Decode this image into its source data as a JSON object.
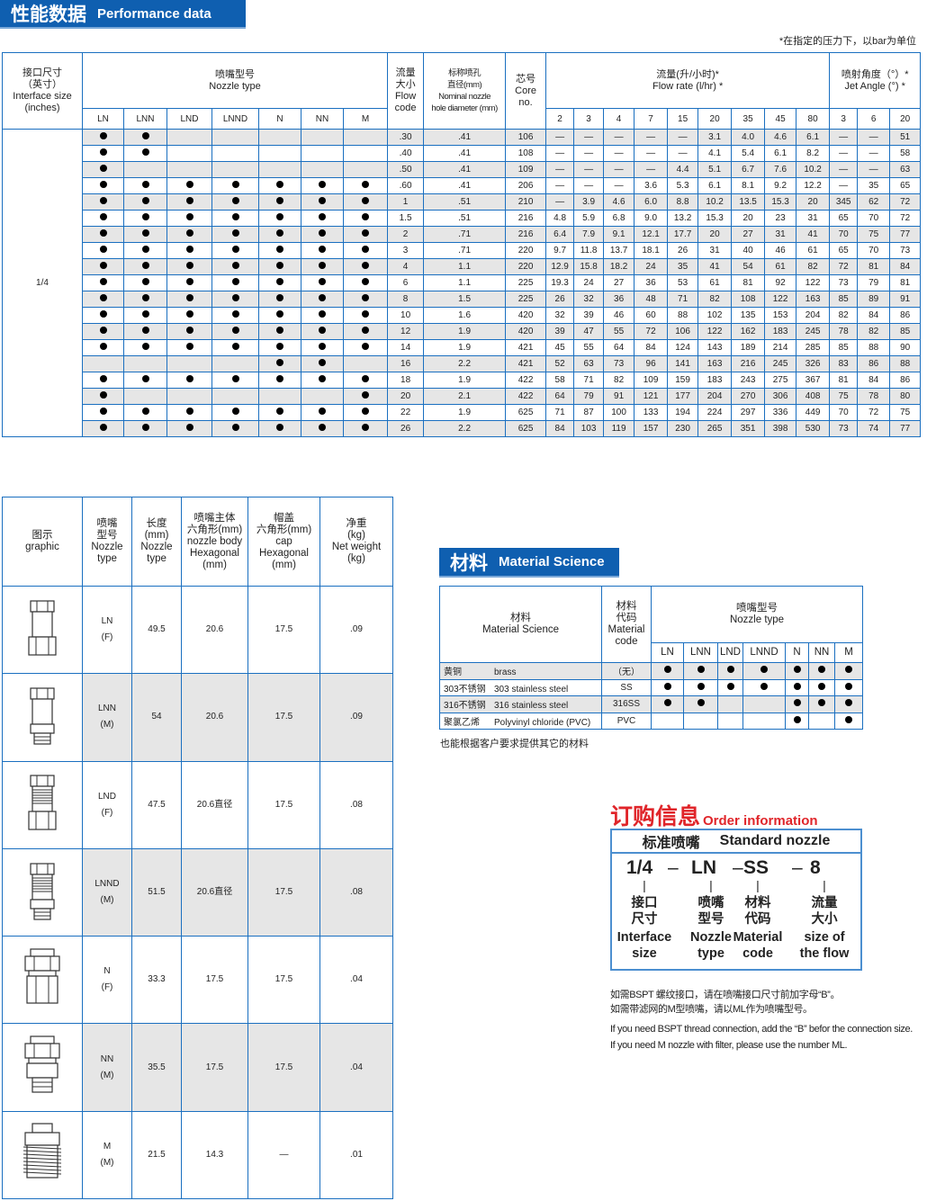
{
  "perf": {
    "banner_cn": "性能数据",
    "banner_en": "Performance data",
    "note": "*在指定的压力下，以bar为单位",
    "headers": {
      "interface": [
        "接口尺寸",
        "（英寸）",
        "Interface size",
        "(inches)"
      ],
      "nozzle_type_cn": "喷嘴型号",
      "nozzle_type_en": "Nozzle type",
      "flow_code": [
        "流量",
        "大小",
        "Flow",
        "code"
      ],
      "diameter": [
        "标称喷孔",
        "直径(mm)",
        "Nominal nozzle",
        "hole diameter (mm)"
      ],
      "core": [
        "芯号",
        "Core",
        "no."
      ],
      "flow_rate_cn": "流量(升/小时)*",
      "flow_rate_en": "Flow rate (l/hr) *",
      "jet_cn": "喷射角度（°）*",
      "jet_en": "Jet Angle (°) *"
    },
    "types": [
      "LN",
      "LNN",
      "LND",
      "LNND",
      "N",
      "NN",
      "M"
    ],
    "pressures": [
      "2",
      "3",
      "4",
      "7",
      "15",
      "20",
      "35",
      "45",
      "80"
    ],
    "angle_pressures": [
      "3",
      "6",
      "20"
    ],
    "interface_value": "1/4",
    "rows": [
      {
        "t": [
          1,
          1,
          0,
          0,
          0,
          0,
          0
        ],
        "code": ".30",
        "dia": ".41",
        "core": "106",
        "flow": [
          "—",
          "—",
          "—",
          "—",
          "—",
          "3.1",
          "4.0",
          "4.6",
          "6.1"
        ],
        "angle": [
          "—",
          "—",
          "51"
        ]
      },
      {
        "t": [
          1,
          1,
          0,
          0,
          0,
          0,
          0
        ],
        "code": ".40",
        "dia": ".41",
        "core": "108",
        "flow": [
          "—",
          "—",
          "—",
          "—",
          "—",
          "4.1",
          "5.4",
          "6.1",
          "8.2"
        ],
        "angle": [
          "—",
          "—",
          "58"
        ]
      },
      {
        "t": [
          1,
          0,
          0,
          0,
          0,
          0,
          0
        ],
        "code": ".50",
        "dia": ".41",
        "core": "109",
        "flow": [
          "—",
          "—",
          "—",
          "—",
          "4.4",
          "5.1",
          "6.7",
          "7.6",
          "10.2"
        ],
        "angle": [
          "—",
          "—",
          "63"
        ]
      },
      {
        "t": [
          1,
          1,
          1,
          1,
          1,
          1,
          1
        ],
        "code": ".60",
        "dia": ".41",
        "core": "206",
        "flow": [
          "—",
          "—",
          "—",
          "3.6",
          "5.3",
          "6.1",
          "8.1",
          "9.2",
          "12.2"
        ],
        "angle": [
          "—",
          "35",
          "65"
        ]
      },
      {
        "t": [
          1,
          1,
          1,
          1,
          1,
          1,
          1
        ],
        "code": "1",
        "dia": ".51",
        "core": "210",
        "flow": [
          "—",
          "3.9",
          "4.6",
          "6.0",
          "8.8",
          "10.2",
          "13.5",
          "15.3",
          "20"
        ],
        "angle": [
          "345",
          "62",
          "72"
        ]
      },
      {
        "t": [
          1,
          1,
          1,
          1,
          1,
          1,
          1
        ],
        "code": "1.5",
        "dia": ".51",
        "core": "216",
        "flow": [
          "4.8",
          "5.9",
          "6.8",
          "9.0",
          "13.2",
          "15.3",
          "20",
          "23",
          "31"
        ],
        "angle": [
          "65",
          "70",
          "72"
        ]
      },
      {
        "t": [
          1,
          1,
          1,
          1,
          1,
          1,
          1
        ],
        "code": "2",
        "dia": ".71",
        "core": "216",
        "flow": [
          "6.4",
          "7.9",
          "9.1",
          "12.1",
          "17.7",
          "20",
          "27",
          "31",
          "41"
        ],
        "angle": [
          "70",
          "75",
          "77"
        ]
      },
      {
        "t": [
          1,
          1,
          1,
          1,
          1,
          1,
          1
        ],
        "code": "3",
        "dia": ".71",
        "core": "220",
        "flow": [
          "9.7",
          "11.8",
          "13.7",
          "18.1",
          "26",
          "31",
          "40",
          "46",
          "61"
        ],
        "angle": [
          "65",
          "70",
          "73"
        ]
      },
      {
        "t": [
          1,
          1,
          1,
          1,
          1,
          1,
          1
        ],
        "code": "4",
        "dia": "1.1",
        "core": "220",
        "flow": [
          "12.9",
          "15.8",
          "18.2",
          "24",
          "35",
          "41",
          "54",
          "61",
          "82"
        ],
        "angle": [
          "72",
          "81",
          "84"
        ]
      },
      {
        "t": [
          1,
          1,
          1,
          1,
          1,
          1,
          1
        ],
        "code": "6",
        "dia": "1.1",
        "core": "225",
        "flow": [
          "19.3",
          "24",
          "27",
          "36",
          "53",
          "61",
          "81",
          "92",
          "122"
        ],
        "angle": [
          "73",
          "79",
          "81"
        ]
      },
      {
        "t": [
          1,
          1,
          1,
          1,
          1,
          1,
          1
        ],
        "code": "8",
        "dia": "1.5",
        "core": "225",
        "flow": [
          "26",
          "32",
          "36",
          "48",
          "71",
          "82",
          "108",
          "122",
          "163"
        ],
        "angle": [
          "85",
          "89",
          "91"
        ]
      },
      {
        "t": [
          1,
          1,
          1,
          1,
          1,
          1,
          1
        ],
        "code": "10",
        "dia": "1.6",
        "core": "420",
        "flow": [
          "32",
          "39",
          "46",
          "60",
          "88",
          "102",
          "135",
          "153",
          "204"
        ],
        "angle": [
          "82",
          "84",
          "86"
        ]
      },
      {
        "t": [
          1,
          1,
          1,
          1,
          1,
          1,
          1
        ],
        "code": "12",
        "dia": "1.9",
        "core": "420",
        "flow": [
          "39",
          "47",
          "55",
          "72",
          "106",
          "122",
          "162",
          "183",
          "245"
        ],
        "angle": [
          "78",
          "82",
          "85"
        ]
      },
      {
        "t": [
          1,
          1,
          1,
          1,
          1,
          1,
          1
        ],
        "code": "14",
        "dia": "1.9",
        "core": "421",
        "flow": [
          "45",
          "55",
          "64",
          "84",
          "124",
          "143",
          "189",
          "214",
          "285"
        ],
        "angle": [
          "85",
          "88",
          "90"
        ]
      },
      {
        "t": [
          0,
          0,
          0,
          0,
          1,
          1,
          0
        ],
        "code": "16",
        "dia": "2.2",
        "core": "421",
        "flow": [
          "52",
          "63",
          "73",
          "96",
          "141",
          "163",
          "216",
          "245",
          "326"
        ],
        "angle": [
          "83",
          "86",
          "88"
        ]
      },
      {
        "t": [
          1,
          1,
          1,
          1,
          1,
          1,
          1
        ],
        "code": "18",
        "dia": "1.9",
        "core": "422",
        "flow": [
          "58",
          "71",
          "82",
          "109",
          "159",
          "183",
          "243",
          "275",
          "367"
        ],
        "angle": [
          "81",
          "84",
          "86"
        ]
      },
      {
        "t": [
          1,
          0,
          0,
          0,
          0,
          0,
          1
        ],
        "code": "20",
        "dia": "2.1",
        "core": "422",
        "flow": [
          "64",
          "79",
          "91",
          "121",
          "177",
          "204",
          "270",
          "306",
          "408"
        ],
        "angle": [
          "75",
          "78",
          "80"
        ]
      },
      {
        "t": [
          1,
          1,
          1,
          1,
          1,
          1,
          1
        ],
        "code": "22",
        "dia": "1.9",
        "core": "625",
        "flow": [
          "71",
          "87",
          "100",
          "133",
          "194",
          "224",
          "297",
          "336",
          "449"
        ],
        "angle": [
          "70",
          "72",
          "75"
        ]
      },
      {
        "t": [
          1,
          1,
          1,
          1,
          1,
          1,
          1
        ],
        "code": "26",
        "dia": "2.2",
        "core": "625",
        "flow": [
          "84",
          "103",
          "119",
          "157",
          "230",
          "265",
          "351",
          "398",
          "530"
        ],
        "angle": [
          "73",
          "74",
          "77"
        ]
      }
    ]
  },
  "dims": {
    "headers": [
      [
        "图示",
        "graphic"
      ],
      [
        "喷嘴",
        "型号",
        "Nozzle",
        "type"
      ],
      [
        "长度",
        "(mm)",
        "Nozzle",
        "type"
      ],
      [
        "喷嘴主体",
        "六角形(mm)",
        "nozzle body",
        "Hexagonal",
        "(mm)"
      ],
      [
        "帽盖",
        "六角形(mm)",
        "cap",
        "Hexagonal",
        "(mm)"
      ],
      [
        "净重",
        "(kg)",
        "Net weight",
        "(kg)"
      ]
    ],
    "rows": [
      {
        "type": "LN",
        "sub": "(F)",
        "length": "49.5",
        "body": "20.6",
        "cap": "17.5",
        "weight": ".09",
        "icon": "ln-nozzle-icon"
      },
      {
        "type": "LNN",
        "sub": "(M)",
        "length": "54",
        "body": "20.6",
        "cap": "17.5",
        "weight": ".09",
        "icon": "lnn-nozzle-icon"
      },
      {
        "type": "LND",
        "sub": "(F)",
        "length": "47.5",
        "body": "20.6直径",
        "cap": "17.5",
        "weight": ".08",
        "icon": "lnd-nozzle-icon"
      },
      {
        "type": "LNND",
        "sub": "(M)",
        "length": "51.5",
        "body": "20.6直径",
        "cap": "17.5",
        "weight": ".08",
        "icon": "lnnd-nozzle-icon"
      },
      {
        "type": "N",
        "sub": "(F)",
        "length": "33.3",
        "body": "17.5",
        "cap": "17.5",
        "weight": ".04",
        "icon": "n-nozzle-icon"
      },
      {
        "type": "NN",
        "sub": "(M)",
        "length": "35.5",
        "body": "17.5",
        "cap": "17.5",
        "weight": ".04",
        "icon": "nn-nozzle-icon"
      },
      {
        "type": "M",
        "sub": "(M)",
        "length": "21.5",
        "body": "14.3",
        "cap": "—",
        "weight": ".01",
        "icon": "m-nozzle-icon"
      }
    ]
  },
  "material": {
    "banner_cn": "材料",
    "banner_en": "Material Science",
    "headers": {
      "material": [
        "材料",
        "Material Science"
      ],
      "code": [
        "材料",
        "代码",
        "Material",
        "code"
      ],
      "nozzle_cn": "喷嘴型号",
      "nozzle_en": "Nozzle type"
    },
    "types": [
      "LN",
      "LNN",
      "LND",
      "LNND",
      "N",
      "NN",
      "M"
    ],
    "rows": [
      {
        "cn": "黄铜",
        "en": "brass",
        "code": "（无）",
        "t": [
          1,
          1,
          1,
          1,
          1,
          1,
          1
        ]
      },
      {
        "cn": "303不锈钢",
        "en": "303 stainless steel",
        "code": "SS",
        "t": [
          1,
          1,
          1,
          1,
          1,
          1,
          1
        ]
      },
      {
        "cn": "316不锈钢",
        "en": "316 stainless steel",
        "code": "316SS",
        "t": [
          1,
          1,
          0,
          0,
          1,
          1,
          1
        ]
      },
      {
        "cn": "聚氯乙烯",
        "en": "Polyvinyl chloride (PVC)",
        "code": "PVC",
        "t": [
          0,
          0,
          0,
          0,
          1,
          0,
          1
        ]
      }
    ],
    "footnote": "也能根据客户要求提供其它的材料"
  },
  "order": {
    "title_cn": "订购信息",
    "title_en": "Order information",
    "head_cn": "标准喷嘴",
    "head_en": "Standard nozzle",
    "code": [
      "1/4",
      "–",
      "LN",
      "–",
      "SS",
      "–",
      "8"
    ],
    "parts": [
      {
        "cn1": "接口",
        "cn2": "尺寸",
        "en1": "Interface",
        "en2": "size"
      },
      {
        "cn1": "喷嘴",
        "cn2": "型号",
        "en1": "Nozzle",
        "en2": "type"
      },
      {
        "cn1": "材料",
        "cn2": "代码",
        "en1": "Material",
        "en2": "code"
      },
      {
        "cn1": "流量",
        "cn2": "大小",
        "en1": "size of",
        "en2": "the flow"
      }
    ],
    "notes_cn": [
      "如需BSPT 螺纹接口，请在喷嘴接口尺寸前加字母“B”。",
      "如需带滤网的M型喷嘴，请以ML作为喷嘴型号。"
    ],
    "notes_en": [
      "If you need BSPT thread connection, add the “B” befor the connection size.",
      "If you need M nozzle with filter, please use the number ML."
    ]
  },
  "colors": {
    "brand_blue": "#0f5fb0",
    "grid_blue": "#1a6fc0",
    "order_red": "#e0252a",
    "row_shade": "#e6e6e6"
  }
}
